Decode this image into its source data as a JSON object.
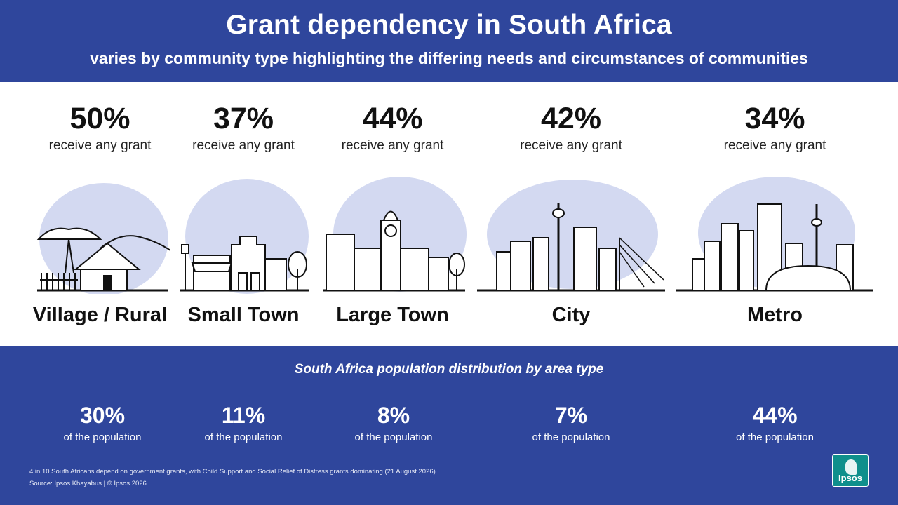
{
  "header": {
    "title": "Grant dependency in South Africa",
    "subtitle": "varies by community type highlighting the differing needs and circumstances of communities"
  },
  "areas": [
    {
      "pct": "50%",
      "caption": "receive any grant",
      "name": "Village / Rural",
      "icon": "village-illustration"
    },
    {
      "pct": "37%",
      "caption": "receive any grant",
      "name": "Small Town",
      "icon": "small-town-illustration"
    },
    {
      "pct": "44%",
      "caption": "receive any grant",
      "name": "Large Town",
      "icon": "large-town-illustration"
    },
    {
      "pct": "42%",
      "caption": "receive any grant",
      "name": "City",
      "icon": "city-illustration"
    },
    {
      "pct": "34%",
      "caption": "receive any grant",
      "name": "Metro",
      "icon": "metro-illustration"
    }
  ],
  "population": {
    "title": "South Africa population distribution by area type",
    "items": [
      {
        "pct": "30%",
        "label": "of the population"
      },
      {
        "pct": "11%",
        "label": "of the population"
      },
      {
        "pct": "8%",
        "label": "of the population"
      },
      {
        "pct": "7%",
        "label": "of the population"
      },
      {
        "pct": "44%",
        "label": "of the population"
      }
    ]
  },
  "footer": {
    "note": "4 in 10 South Africans depend on government grants, with Child Support and Social Relief of Distress grants dominating (21 August 2026)",
    "source": "Source: Ipsos Khayabus  |  © Ipsos 2026"
  },
  "logo": {
    "text": "Ipsos"
  },
  "colors": {
    "primary": "#2f469c",
    "blob": "#d3d9f1",
    "logo": "#0f8f8c"
  }
}
